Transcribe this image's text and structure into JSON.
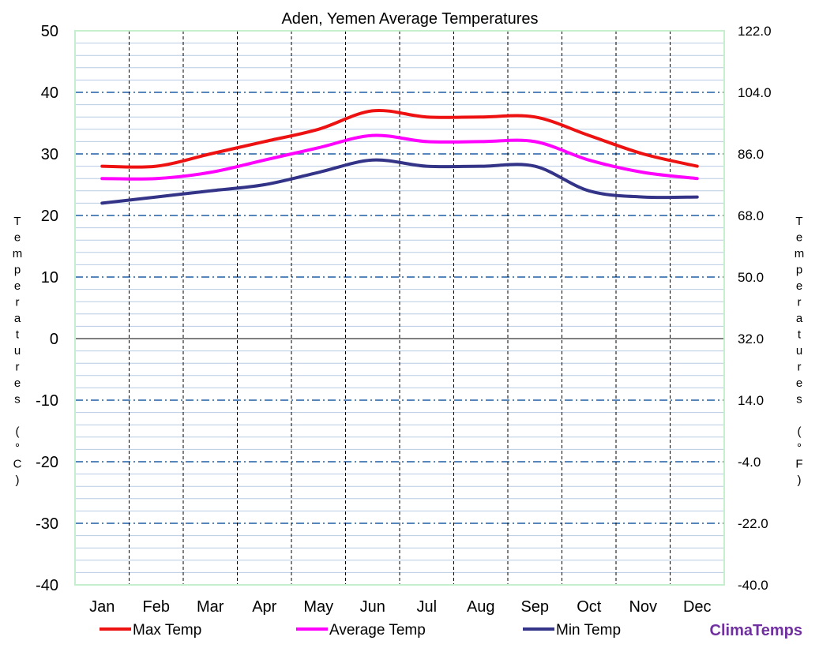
{
  "chart_data": {
    "type": "line",
    "title": "Aden, Yemen Average Temperatures",
    "ylabel_left": "Temperatures (°C)",
    "ylabel_right": "Temperatures (°F)",
    "categories": [
      "Jan",
      "Feb",
      "Mar",
      "Apr",
      "May",
      "Jun",
      "Jul",
      "Aug",
      "Sep",
      "Oct",
      "Nov",
      "Dec"
    ],
    "ylim": [
      -40,
      50
    ],
    "yticks_left": [
      "50",
      "40",
      "30",
      "20",
      "10",
      "0",
      "-10",
      "-20",
      "-30",
      "-40"
    ],
    "yticks_right": [
      "122.0",
      "104.0",
      "86.0",
      "68.0",
      "50.0",
      "32.0",
      "14.0",
      "-4.0",
      "-22.0",
      "-40.0"
    ],
    "grid": true,
    "legend_position": "bottom",
    "series": [
      {
        "name": "Max Temp",
        "color": "#ee1111",
        "values": [
          28,
          28,
          30,
          32,
          34,
          37,
          36,
          36,
          36,
          33,
          30,
          28
        ]
      },
      {
        "name": "Average Temp",
        "color": "#ff00ff",
        "values": [
          26,
          26,
          27,
          29,
          31,
          33,
          32,
          32,
          32,
          29,
          27,
          26
        ]
      },
      {
        "name": "Min Temp",
        "color": "#333388",
        "values": [
          22,
          23,
          24,
          25,
          27,
          29,
          28,
          28,
          28,
          24,
          23,
          23
        ]
      }
    ]
  },
  "brand": {
    "label": "ClimaTemps",
    "color": "#7030a0"
  }
}
